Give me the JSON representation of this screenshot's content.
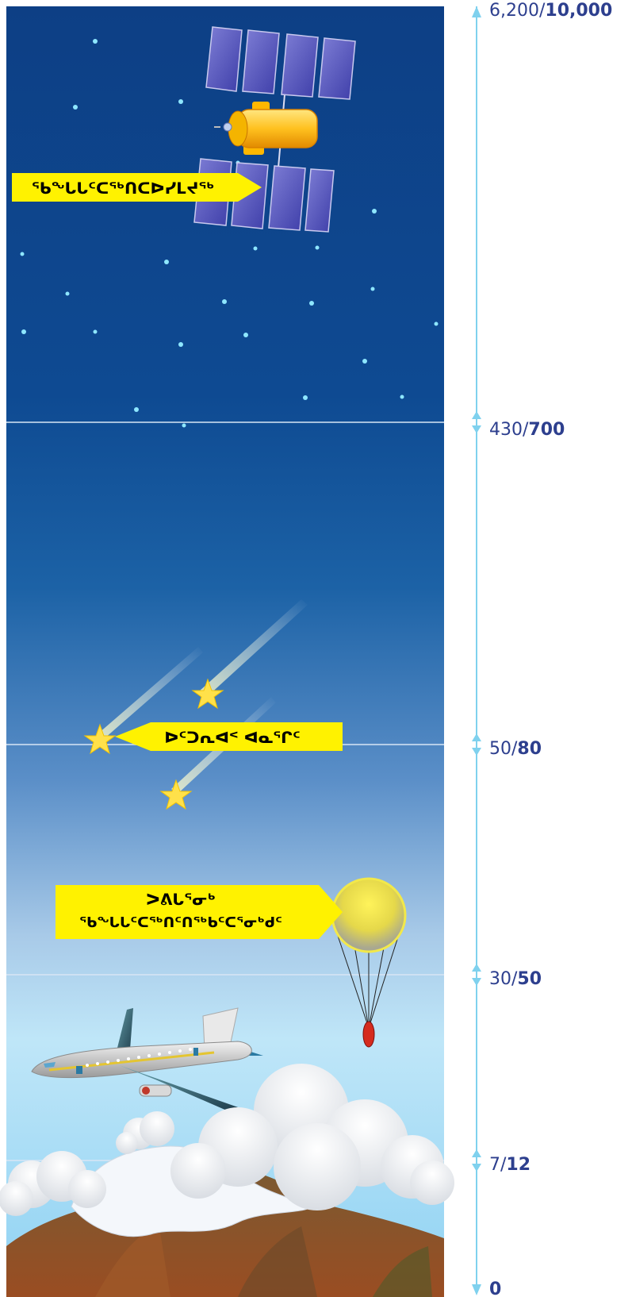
{
  "labels": {
    "satellite": "ᖃᖓᒐᑦᑕᖅᑎᑕᐅᓯᒪᔪᖅ",
    "meteors": "ᐅᑦᑐᕆᐊᑉ ᐊᓇᕐᒋᑦ",
    "balloon_line1": "ᐳᕕᒐᕐᓂᒃ",
    "balloon_line2": "ᖃᖓᒐᑦᑕᖅᑎᑦᑎᖅᑲᑦᑕᕐᓂᒃᑯᑦ"
  },
  "altitudes": [
    {
      "id": "space",
      "small": "6,200/",
      "big": "10,000"
    },
    {
      "id": "meteors",
      "small": "430/",
      "big": "700"
    },
    {
      "id": "balloon",
      "small": "50/",
      "big": "80"
    },
    {
      "id": "airplane",
      "small": "30/",
      "big": "50"
    },
    {
      "id": "clouds",
      "small": "7/",
      "big": "12"
    },
    {
      "id": "ground",
      "small": "",
      "big": "0"
    }
  ],
  "colors": {
    "sky_top": "#0d3f85",
    "sky_bottom": "#bfe6f8",
    "label_yellow": "#fff200",
    "scale_line": "#7fd1ee",
    "altitude_text": "#2d3f8e",
    "balloon_payload": "#d52b1e"
  },
  "icons": [
    "satellite-icon",
    "meteor-icon",
    "weather-balloon-icon",
    "airplane-icon",
    "cloud-icon",
    "mountain-icon"
  ]
}
